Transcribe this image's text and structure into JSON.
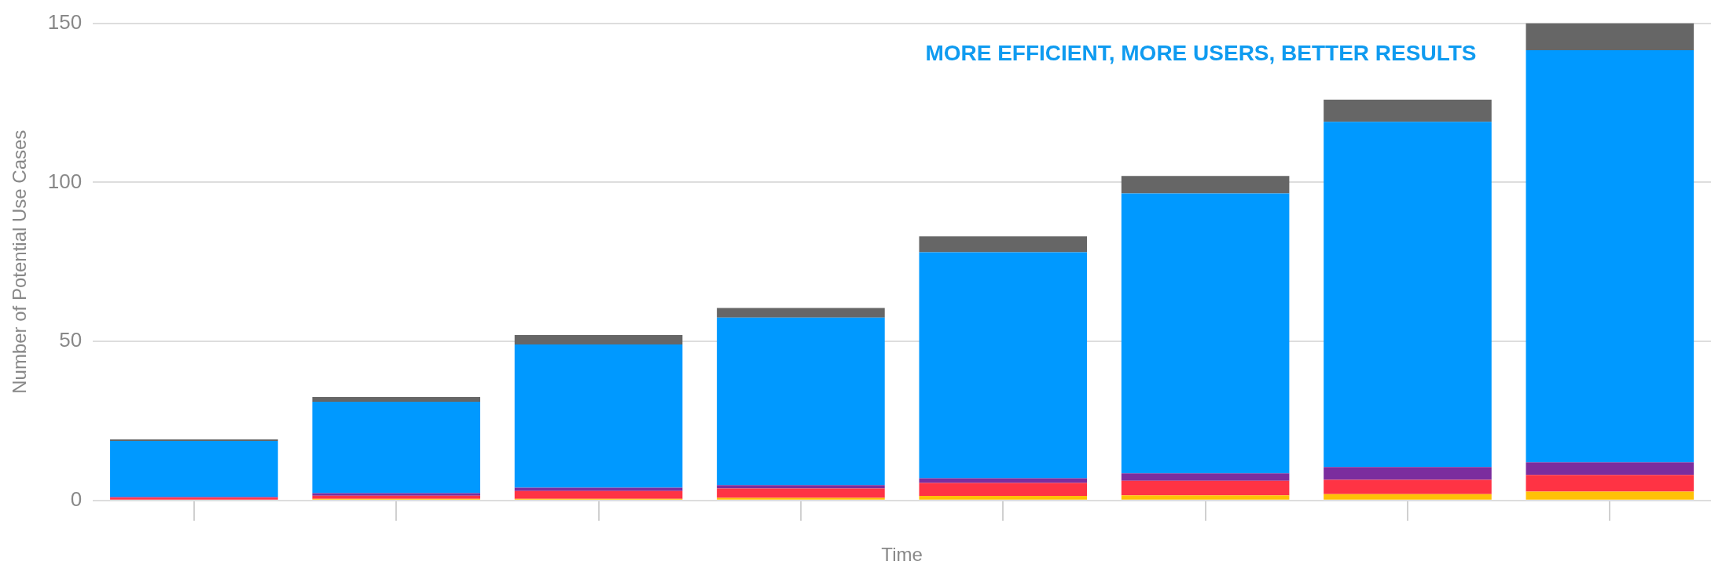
{
  "chart_data": {
    "type": "bar",
    "stacked": true,
    "xlabel": "Time",
    "ylabel": "Number of Potential Use Cases",
    "categories": [
      null,
      null,
      null,
      null,
      null,
      null,
      null,
      null
    ],
    "series": [
      {
        "color": "#ffc107",
        "values": [
          null,
          0.5,
          0.5,
          0.8,
          1.4,
          1.6,
          2,
          2.8
        ]
      },
      {
        "color": "#ff3344",
        "values": [
          0.9,
          1,
          2.5,
          3,
          4.1,
          4.6,
          4.5,
          5.2
        ]
      },
      {
        "color": "#7b2d9e",
        "values": [
          0.2,
          0.8,
          1,
          1,
          1.5,
          2.3,
          4,
          4
        ]
      },
      {
        "color": "#0099ff",
        "values": [
          17.6,
          28.7,
          45,
          52.7,
          71,
          88,
          108.5,
          129.5
        ]
      },
      {
        "color": "#666666",
        "values": [
          0.5,
          1.5,
          3,
          3,
          5,
          5.5,
          7,
          8.5
        ]
      }
    ],
    "ylim": [
      0,
      150
    ],
    "yticks": [
      0,
      50,
      100,
      150
    ],
    "grid": "y",
    "legend": false,
    "annotations": [
      "MORE EFFICIENT, MORE USERS, BETTER RESULTS"
    ]
  }
}
